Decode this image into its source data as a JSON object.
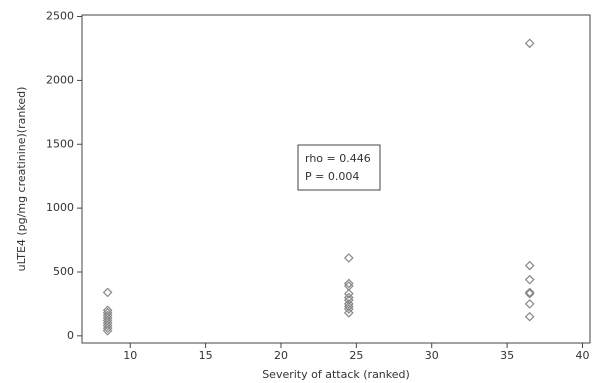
{
  "chart_data": {
    "type": "scatter",
    "x_label": "Severity of attack (ranked)",
    "y_label": "uLTE4 (pg/mg creatinine)(ranked)",
    "annotation": [
      "rho = 0.446",
      "P = 0.004"
    ],
    "x": [
      8.5,
      8.5,
      8.5,
      8.5,
      8.5,
      8.5,
      8.5,
      8.5,
      8.5,
      8.5,
      24.5,
      24.5,
      24.5,
      24.5,
      24.5,
      24.5,
      24.5,
      24.5,
      24.5,
      24.5,
      36.5,
      36.5,
      36.5,
      36.5,
      36.5,
      36.5,
      36.5
    ],
    "values": [
      340,
      200,
      180,
      160,
      140,
      120,
      100,
      80,
      60,
      40,
      610,
      410,
      390,
      330,
      300,
      280,
      250,
      230,
      210,
      180,
      2290,
      550,
      440,
      340,
      330,
      250,
      150
    ],
    "color": "#888888",
    "xlim": [
      6.8,
      40.5
    ],
    "xticks": [
      10,
      15,
      20,
      25,
      30,
      35,
      40
    ],
    "ylim": [
      -56,
      2512
    ],
    "yticks": [
      0,
      500,
      1000,
      1500,
      2000,
      2500
    ]
  }
}
